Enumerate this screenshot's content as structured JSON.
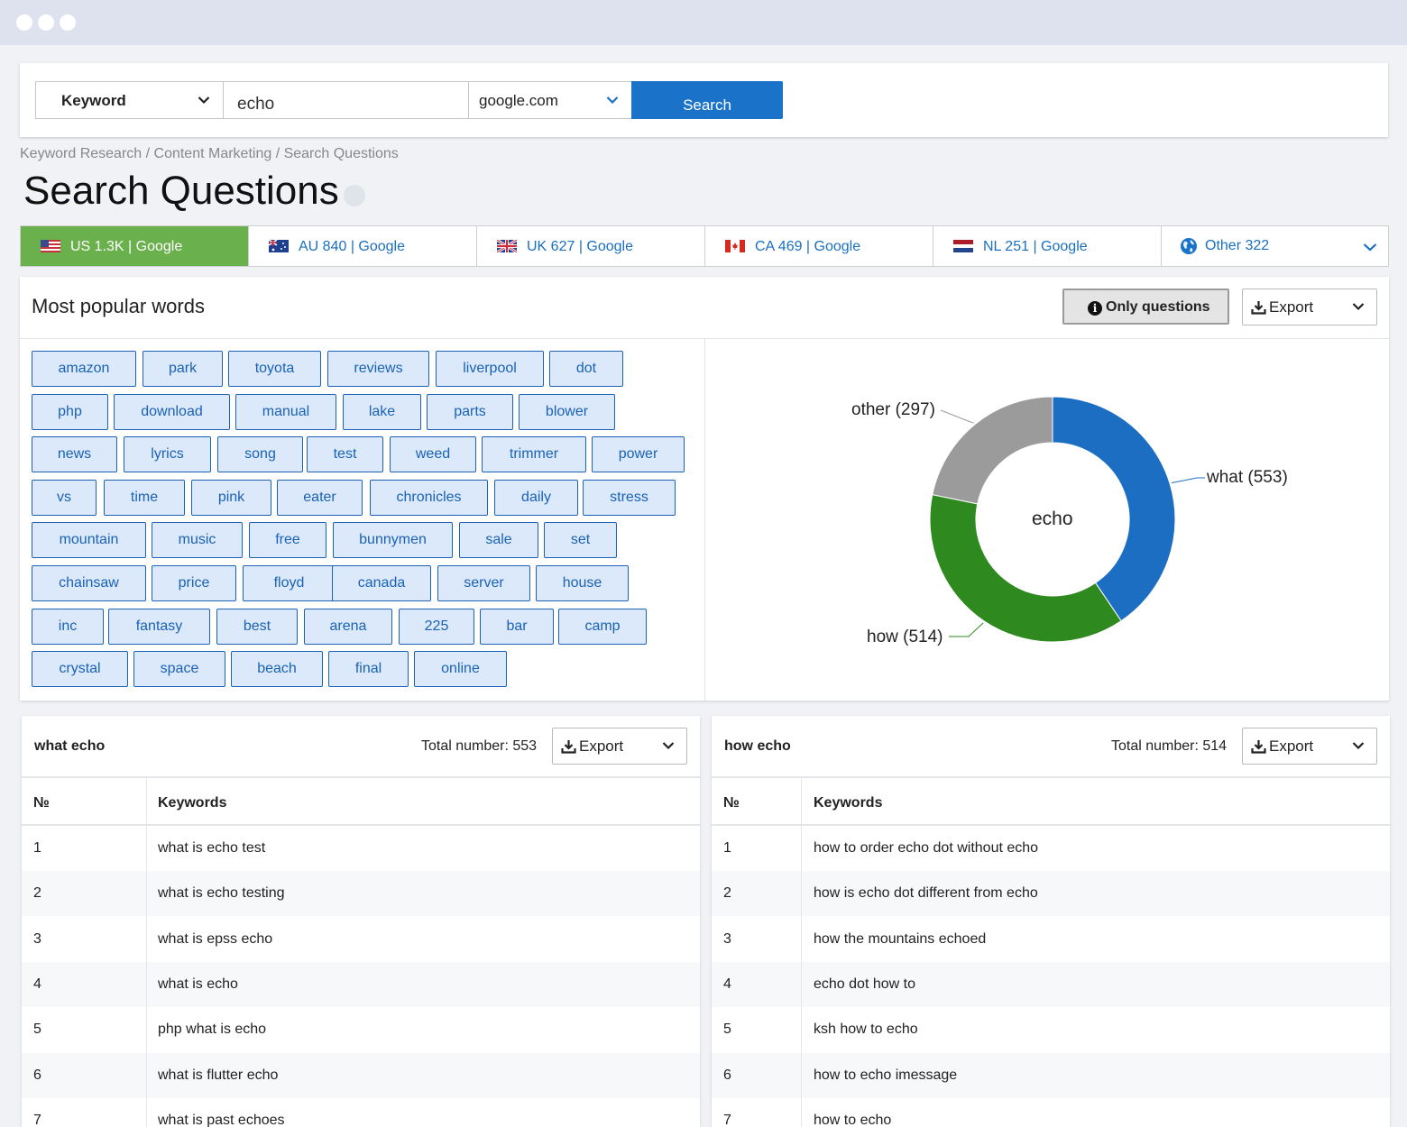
{
  "search": {
    "type_label": "Keyword",
    "query": "echo",
    "engine": "google.com",
    "button": "Search"
  },
  "breadcrumb": "Keyword Research / Content Marketing / Search Questions",
  "page_title": "Search Questions",
  "tabs": [
    {
      "label": "US 1.3K | Google",
      "flag": "us-flag-icon",
      "active": true
    },
    {
      "label": "AU 840 | Google",
      "flag": "au-flag-icon"
    },
    {
      "label": "UK 627 | Google",
      "flag": "uk-flag-icon"
    },
    {
      "label": "CA 469 | Google",
      "flag": "ca-flag-icon"
    },
    {
      "label": "NL 251 | Google",
      "flag": "nl-flag-icon"
    },
    {
      "label": "Other 322",
      "flag": "globe-icon"
    }
  ],
  "popular": {
    "title": "Most popular words",
    "only_questions": "Only questions",
    "export": "Export",
    "words": [
      "amazon",
      "park",
      "toyota",
      "reviews",
      "liverpool",
      "dot",
      "php",
      "download",
      "manual",
      "lake",
      "parts",
      "blower",
      "news",
      "lyrics",
      "song",
      "test",
      "weed",
      "trimmer",
      "power",
      "vs",
      "time",
      "pink",
      "eater",
      "chronicles",
      "daily",
      "stress",
      "mountain",
      "music",
      "free",
      "bunnymen",
      "sale",
      "set",
      "chainsaw",
      "price",
      "floyd",
      "canada",
      "server",
      "house",
      "inc",
      "fantasy",
      "best",
      "arena",
      "225",
      "bar",
      "camp",
      "crystal",
      "space",
      "beach",
      "final",
      "online"
    ]
  },
  "chart_data": {
    "type": "pie",
    "center_label": "echo",
    "labels": [
      "what (553)",
      "how (514)",
      "other (297)"
    ],
    "categories": [
      "what",
      "how",
      "other"
    ],
    "values": [
      553,
      514,
      297
    ],
    "colors": [
      "#1b6ec2",
      "#2e8a1f",
      "#9b9b9b"
    ]
  },
  "colors": {
    "accent": "#1a73c9",
    "active_tab": "#6ab04c",
    "word_bg": "#dbe9fb",
    "word_border": "#1d62b4"
  },
  "tables": [
    {
      "title": "what echo",
      "total": "Total number: 553",
      "export": "Export",
      "col_num": "№",
      "col_kw": "Keywords",
      "rows": [
        {
          "n": "1",
          "kw": "what is echo test"
        },
        {
          "n": "2",
          "kw": "what is echo testing"
        },
        {
          "n": "3",
          "kw": "what is epss echo"
        },
        {
          "n": "4",
          "kw": "what is echo"
        },
        {
          "n": "5",
          "kw": "php what is echo"
        },
        {
          "n": "6",
          "kw": "what is flutter echo"
        },
        {
          "n": "7",
          "kw": "what is past echoes"
        }
      ]
    },
    {
      "title": "how echo",
      "total": "Total number: 514",
      "export": "Export",
      "col_num": "№",
      "col_kw": "Keywords",
      "rows": [
        {
          "n": "1",
          "kw": "how to order echo dot without echo"
        },
        {
          "n": "2",
          "kw": "how is echo dot different from echo"
        },
        {
          "n": "3",
          "kw": "how the mountains echoed"
        },
        {
          "n": "4",
          "kw": "echo dot how to"
        },
        {
          "n": "5",
          "kw": "ksh how to echo"
        },
        {
          "n": "6",
          "kw": "how to echo imessage"
        },
        {
          "n": "7",
          "kw": "how to echo"
        }
      ]
    }
  ]
}
